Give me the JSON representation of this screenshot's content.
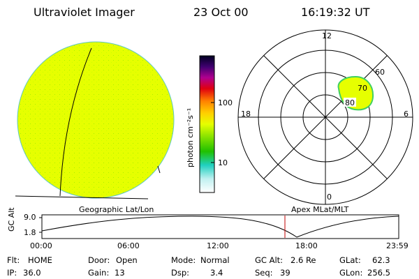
{
  "header": {
    "instrument": "Ultraviolet Imager",
    "date": "23 Oct 00",
    "time": "16:19:32 UT"
  },
  "colorbar": {
    "unit_label": "photon cm⁻²s⁻¹",
    "scale": "log",
    "ticks": [
      "100",
      "10"
    ]
  },
  "left_panel": {
    "label": "Geographic Lat/Lon",
    "fill_color": "#e6ff00"
  },
  "polar_panel": {
    "label": "Apex MLat/MLT",
    "mlt_labels": [
      "12",
      "18",
      "6",
      "0"
    ],
    "lat_labels": [
      "60",
      "70",
      "80"
    ],
    "aurora_color": "#e6ff00"
  },
  "timeline": {
    "y_axis_label": "GC Alt",
    "y_ticks": [
      "9.0",
      "1.8"
    ],
    "x_ticks": [
      "00:00",
      "06:00",
      "12:00",
      "18:00",
      "23:59"
    ],
    "current_time_hours": 16.33
  },
  "status": {
    "filter": {
      "label": "Flt:",
      "value": "HOME"
    },
    "ip": {
      "label": "IP:",
      "value": "36.0"
    },
    "door": {
      "label": "Door:",
      "value": "Open"
    },
    "gain": {
      "label": "Gain:",
      "value": "13"
    },
    "mode": {
      "label": "Mode:",
      "value": "Normal"
    },
    "dsp": {
      "label": "Dsp:",
      "value": "3.4"
    },
    "gc_alt": {
      "label": "GC Alt:",
      "value": "2.6 Re"
    },
    "seq": {
      "label": "Seq:",
      "value": "39"
    },
    "glat": {
      "label": "GLat:",
      "value": "62.3"
    },
    "glon": {
      "label": "GLon:",
      "value": "256.5"
    }
  }
}
